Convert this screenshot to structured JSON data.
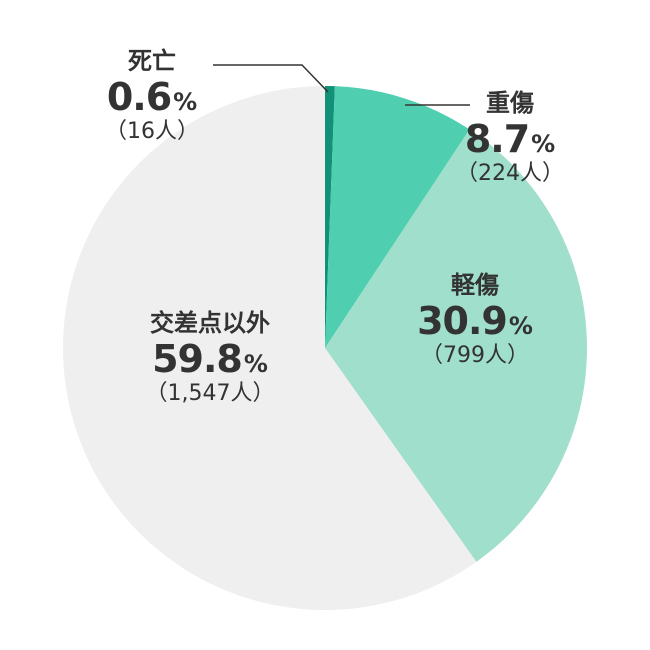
{
  "chart_data": {
    "type": "pie",
    "start_angle_deg": 0,
    "direction": "clockwise",
    "slices": [
      {
        "name": "死亡",
        "value": 0.6,
        "pct": "0.6",
        "unit": "%",
        "count": "（16人）",
        "color": "#109178"
      },
      {
        "name": "重傷",
        "value": 8.7,
        "pct": "8.7",
        "unit": "%",
        "count": "（224人）",
        "color": "#4fcfb0"
      },
      {
        "name": "軽傷",
        "value": 30.9,
        "pct": "30.9",
        "unit": "%",
        "count": "（799人）",
        "color": "#9fdfcb"
      },
      {
        "name": "交差点以外",
        "value": 59.8,
        "pct": "59.8",
        "unit": "%",
        "count": "（1,547人）",
        "color": "#efefef"
      }
    ]
  }
}
